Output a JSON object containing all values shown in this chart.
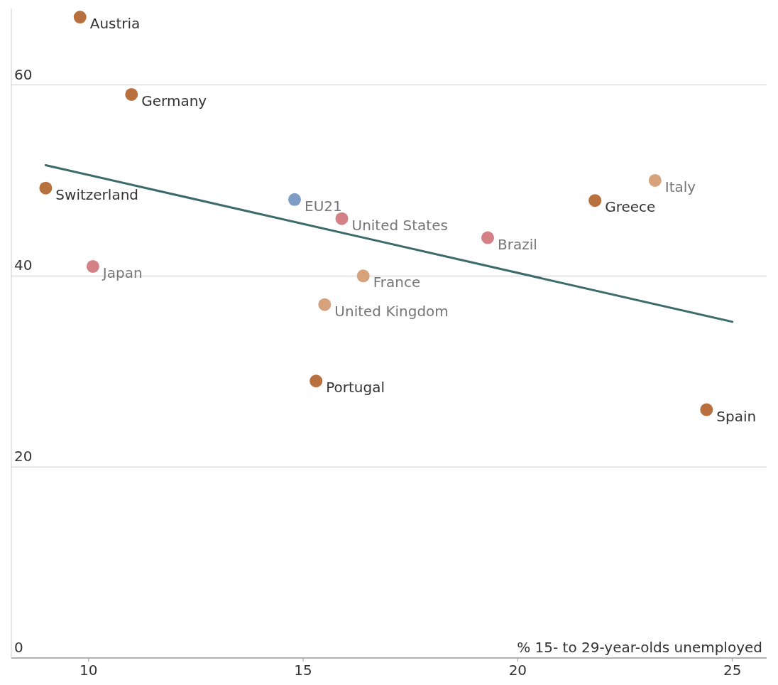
{
  "chart_data": {
    "type": "scatter",
    "xlabel": "% 15- to 29-year-olds unemployed",
    "xlim": [
      8.2,
      25.8
    ],
    "xticks": [
      10,
      15,
      20,
      25
    ],
    "ylim": [
      0,
      68
    ],
    "yticks": [
      0,
      20,
      40,
      60
    ],
    "grid": "y",
    "marker": "circle",
    "series": [
      {
        "color": "#b8703f",
        "x": [
          9.8,
          11.0,
          9.0,
          21.8,
          15.3,
          24.4
        ],
        "values": [
          67.1,
          59.0,
          49.2,
          47.9,
          29.0,
          26.0
        ]
      },
      {
        "color": "#d6a27c",
        "x": [
          23.2,
          16.4,
          15.5
        ],
        "values": [
          50.0,
          40.0,
          37.0
        ]
      },
      {
        "color": "#d48087",
        "x": [
          15.9,
          19.3,
          10.1
        ],
        "values": [
          46.0,
          44.0,
          41.0
        ]
      },
      {
        "color": "#7e9cc5",
        "x": [
          14.8
        ],
        "values": [
          48.0
        ]
      },
      {
        "type": "line",
        "color": "#3d6b6b",
        "x": [
          9.0,
          25.0
        ],
        "values": [
          51.6,
          35.2
        ],
        "marker": "none",
        "line_style": "solid"
      }
    ],
    "annotations": [
      {
        "text": "Austria",
        "x": 9.8,
        "y": 67.1
      },
      {
        "text": "Germany",
        "x": 11.0,
        "y": 59.0
      },
      {
        "text": "Switzerland",
        "x": 9.0,
        "y": 49.2
      },
      {
        "text": "Greece",
        "x": 21.8,
        "y": 47.9
      },
      {
        "text": "Portugal",
        "x": 15.3,
        "y": 29.0
      },
      {
        "text": "Spain",
        "x": 24.4,
        "y": 26.0
      },
      {
        "text": "Italy",
        "x": 23.2,
        "y": 50.0
      },
      {
        "text": "France",
        "x": 16.4,
        "y": 40.0
      },
      {
        "text": "United Kingdom",
        "x": 15.5,
        "y": 37.0
      },
      {
        "text": "United States",
        "x": 15.9,
        "y": 46.0
      },
      {
        "text": "Brazil",
        "x": 19.3,
        "y": 44.0
      },
      {
        "text": "Japan",
        "x": 10.1,
        "y": 41.0
      },
      {
        "text": "EU21",
        "x": 14.8,
        "y": 48.0
      }
    ]
  }
}
